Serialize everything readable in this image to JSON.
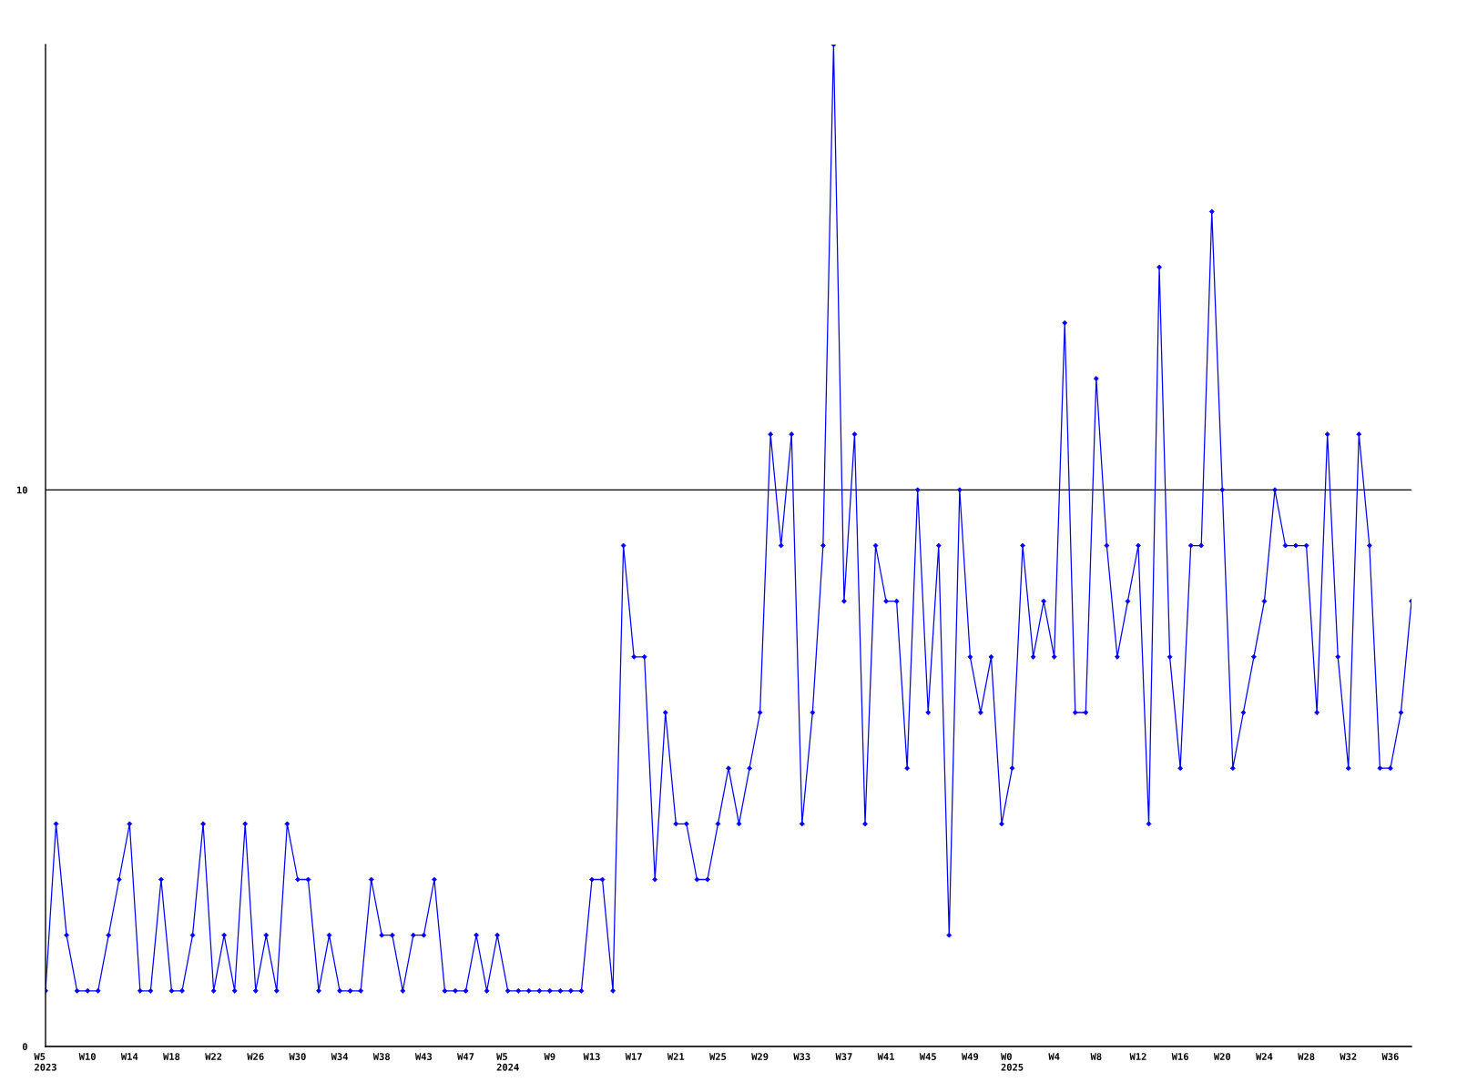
{
  "chart_data": {
    "type": "line",
    "categories": [
      "W5\n2023",
      null,
      null,
      null,
      "W10",
      null,
      null,
      null,
      "W14",
      null,
      null,
      null,
      "W18",
      null,
      null,
      null,
      "W22",
      null,
      null,
      null,
      "W26",
      null,
      null,
      null,
      "W30",
      null,
      null,
      null,
      "W34",
      null,
      null,
      null,
      "W38",
      null,
      null,
      null,
      "W43",
      null,
      null,
      null,
      "W47",
      null,
      null,
      null,
      "W5\n2024",
      null,
      null,
      null,
      "W9",
      null,
      null,
      null,
      "W13",
      null,
      null,
      null,
      "W17",
      null,
      null,
      null,
      "W21",
      null,
      null,
      null,
      "W25",
      null,
      null,
      null,
      "W29",
      null,
      null,
      null,
      "W33",
      null,
      null,
      null,
      "W37",
      null,
      null,
      null,
      "W41",
      null,
      null,
      null,
      "W45",
      null,
      null,
      null,
      "W49",
      null,
      null,
      null,
      "W0\n2025",
      null,
      null,
      null,
      "W4",
      null,
      null,
      null,
      "W8",
      null,
      null,
      null,
      "W12",
      null,
      null,
      null,
      "W16",
      null,
      null,
      null,
      "W20",
      null,
      null,
      null,
      "W24",
      null,
      null,
      null,
      "W28",
      null,
      null,
      null,
      "W32",
      null,
      null,
      null,
      "W36",
      null,
      null
    ],
    "series": [
      {
        "color": "#0000ff",
        "values": [
          1,
          4,
          2,
          1,
          1,
          1,
          2,
          3,
          4,
          1,
          1,
          3,
          1,
          1,
          2,
          4,
          1,
          2,
          1,
          4,
          1,
          2,
          1,
          4,
          3,
          3,
          1,
          2,
          1,
          1,
          1,
          3,
          2,
          2,
          1,
          2,
          2,
          3,
          1,
          1,
          1,
          2,
          1,
          2,
          1,
          1,
          1,
          1,
          1,
          1,
          1,
          1,
          3,
          3,
          1,
          9,
          7,
          7,
          3,
          6,
          4,
          4,
          3,
          3,
          4,
          5,
          4,
          5,
          6,
          11,
          9,
          11,
          4,
          6,
          9,
          18,
          8,
          11,
          4,
          9,
          8,
          8,
          5,
          10,
          6,
          9,
          2,
          10,
          7,
          6,
          7,
          4,
          5,
          9,
          7,
          8,
          7,
          13,
          6,
          6,
          12,
          9,
          7,
          8,
          9,
          4,
          14,
          7,
          5,
          9,
          9,
          15,
          10,
          5,
          6,
          7,
          8,
          10,
          9,
          9,
          9,
          6,
          11,
          7,
          5,
          11,
          9,
          5,
          5,
          6,
          8
        ]
      }
    ],
    "ylim": [
      0,
      18
    ],
    "yticks": [
      0,
      10
    ],
    "grid": "y",
    "marker": "diamond",
    "line_style": "solid"
  }
}
